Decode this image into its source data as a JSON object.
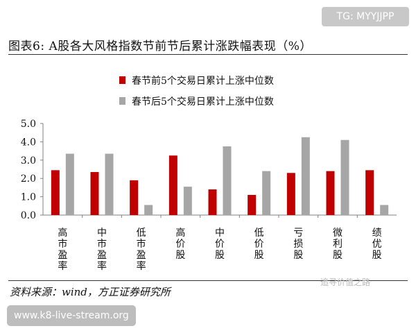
{
  "watermark_top": "TG: MYYJJPP",
  "title": "图表6: A股各大风格指数节前节后累计涨跌幅表现（%）",
  "source": "资料来源：wind，方正证券研究所",
  "watermark_mid": "追寻价值之路",
  "watermark_bottom": "www.k8-live-stream.org",
  "colors": {
    "series1": "#c00000",
    "series2": "#a6a6a6",
    "axis": "#808080"
  },
  "chart_data": {
    "type": "bar",
    "categories": [
      "高市盈率",
      "中市盈率",
      "低市盈率",
      "高价股",
      "中价股",
      "低价股",
      "亏损股",
      "微利股",
      "绩优股"
    ],
    "series": [
      {
        "name": "春节前5个交易日累计上涨中位数",
        "values": [
          2.45,
          2.35,
          1.9,
          3.25,
          1.4,
          1.1,
          2.3,
          2.4,
          2.45
        ]
      },
      {
        "name": "春节后5个交易日累计上涨中位数",
        "values": [
          3.35,
          3.35,
          0.55,
          1.55,
          3.75,
          2.4,
          4.25,
          4.1,
          0.55
        ]
      }
    ],
    "ylim": [
      0,
      5
    ],
    "yticks": [
      "0.0",
      "1.0",
      "2.0",
      "3.0",
      "4.0",
      "5.0"
    ],
    "legend_position": "top",
    "grid": false
  }
}
